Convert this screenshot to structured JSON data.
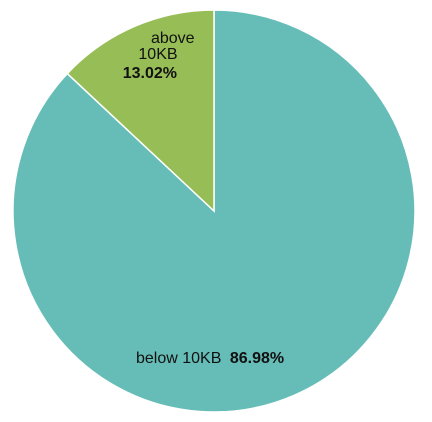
{
  "chart_data": {
    "type": "pie",
    "title": "",
    "slices": [
      {
        "label": "below 10KB",
        "value": 86.98,
        "percent_label": "86.98%",
        "color": "#66bdb7"
      },
      {
        "label": "above 10KB",
        "value": 13.02,
        "percent_label": "13.02%",
        "color": "#97be56"
      }
    ],
    "legend": "none",
    "slice_border_color": "#ffffff"
  }
}
